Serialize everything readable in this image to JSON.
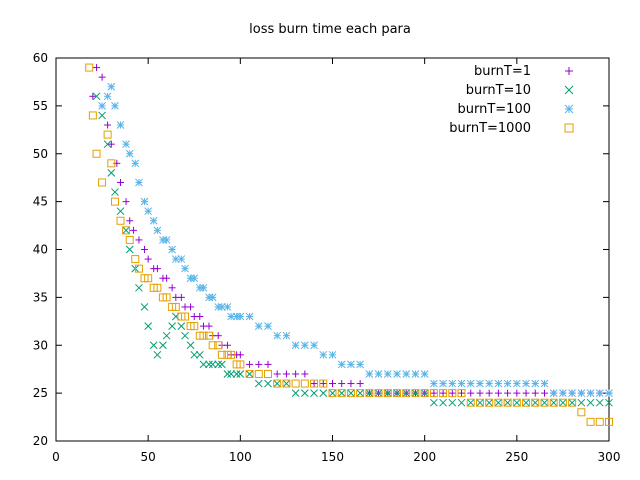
{
  "chart_data": {
    "type": "scatter",
    "title": "loss burn time each para",
    "xlabel": "",
    "ylabel": "",
    "xlim": [
      0,
      300
    ],
    "ylim": [
      20,
      60
    ],
    "xticks": [
      0,
      50,
      100,
      150,
      200,
      250,
      300
    ],
    "yticks": [
      20,
      25,
      30,
      35,
      40,
      45,
      50,
      55,
      60
    ],
    "grid": false,
    "legend_position": "top-right",
    "series": [
      {
        "name": "burnT=1",
        "marker": "plus",
        "color": "#9400d3",
        "x": [
          20,
          22,
          25,
          28,
          30,
          33,
          35,
          38,
          40,
          42,
          45,
          48,
          50,
          53,
          55,
          58,
          60,
          63,
          65,
          68,
          70,
          73,
          75,
          78,
          80,
          83,
          85,
          88,
          90,
          93,
          95,
          98,
          100,
          105,
          110,
          115,
          120,
          125,
          130,
          135,
          140,
          145,
          150,
          155,
          160,
          165,
          170,
          175,
          180,
          185,
          190,
          195,
          200,
          205,
          210,
          215,
          220,
          225,
          230,
          235,
          240,
          245,
          250,
          255,
          260,
          265,
          270,
          275,
          280,
          285,
          290,
          295,
          300
        ],
        "y": [
          56,
          59,
          58,
          53,
          51,
          49,
          47,
          45,
          43,
          42,
          41,
          40,
          39,
          38,
          38,
          37,
          37,
          36,
          35,
          35,
          34,
          34,
          33,
          33,
          32,
          32,
          31,
          31,
          30,
          30,
          29,
          29,
          29,
          28,
          28,
          28,
          27,
          27,
          27,
          27,
          26,
          26,
          26,
          26,
          26,
          26,
          25,
          25,
          25,
          25,
          25,
          25,
          25,
          25,
          25,
          25,
          25,
          25,
          25,
          25,
          25,
          25,
          25,
          25,
          25,
          25,
          25,
          25,
          25,
          25,
          25,
          25,
          25
        ]
      },
      {
        "name": "burnT=10",
        "marker": "cross",
        "color": "#009e73",
        "x": [
          22,
          25,
          28,
          30,
          32,
          35,
          38,
          40,
          43,
          45,
          48,
          50,
          53,
          55,
          58,
          60,
          63,
          65,
          68,
          70,
          73,
          75,
          78,
          80,
          83,
          85,
          88,
          90,
          93,
          95,
          98,
          100,
          105,
          110,
          115,
          120,
          125,
          130,
          135,
          140,
          145,
          150,
          155,
          160,
          165,
          170,
          175,
          180,
          185,
          190,
          195,
          200,
          205,
          210,
          215,
          220,
          225,
          230,
          235,
          240,
          245,
          250,
          255,
          260,
          265,
          270,
          275,
          280,
          285,
          290,
          295,
          300
        ],
        "y": [
          56,
          54,
          51,
          48,
          46,
          44,
          42,
          40,
          38,
          36,
          34,
          32,
          30,
          29,
          30,
          31,
          32,
          33,
          32,
          31,
          30,
          29,
          29,
          28,
          28,
          28,
          28,
          28,
          27,
          27,
          27,
          27,
          27,
          26,
          26,
          26,
          26,
          25,
          25,
          25,
          25,
          25,
          25,
          25,
          25,
          25,
          25,
          25,
          25,
          25,
          25,
          25,
          24,
          24,
          24,
          24,
          24,
          24,
          24,
          24,
          24,
          24,
          24,
          24,
          24,
          24,
          24,
          24,
          24,
          24,
          24,
          24
        ]
      },
      {
        "name": "burnT=100",
        "marker": "star",
        "color": "#56b4e9",
        "x": [
          25,
          28,
          30,
          32,
          35,
          38,
          40,
          43,
          45,
          48,
          50,
          53,
          55,
          58,
          60,
          63,
          65,
          68,
          70,
          73,
          75,
          78,
          80,
          83,
          85,
          88,
          90,
          93,
          95,
          98,
          100,
          105,
          110,
          115,
          120,
          125,
          130,
          135,
          140,
          145,
          150,
          155,
          160,
          165,
          170,
          175,
          180,
          185,
          190,
          195,
          200,
          205,
          210,
          215,
          220,
          225,
          230,
          235,
          240,
          245,
          250,
          255,
          260,
          265,
          270,
          275,
          280,
          285,
          290,
          295,
          300
        ],
        "y": [
          55,
          56,
          57,
          55,
          53,
          51,
          50,
          49,
          47,
          45,
          44,
          43,
          42,
          41,
          41,
          40,
          39,
          39,
          38,
          37,
          37,
          36,
          36,
          35,
          35,
          34,
          34,
          34,
          33,
          33,
          33,
          33,
          32,
          32,
          31,
          31,
          30,
          30,
          30,
          29,
          29,
          28,
          28,
          28,
          27,
          27,
          27,
          27,
          27,
          27,
          27,
          26,
          26,
          26,
          26,
          26,
          26,
          26,
          26,
          26,
          26,
          26,
          26,
          26,
          25,
          25,
          25,
          25,
          25,
          25,
          25
        ]
      },
      {
        "name": "burnT=1000",
        "marker": "square",
        "color": "#e69f00",
        "x": [
          18,
          20,
          22,
          25,
          28,
          30,
          32,
          35,
          38,
          40,
          43,
          45,
          48,
          50,
          53,
          55,
          58,
          60,
          63,
          65,
          68,
          70,
          73,
          75,
          78,
          80,
          83,
          85,
          88,
          90,
          93,
          95,
          98,
          100,
          105,
          110,
          115,
          120,
          125,
          130,
          135,
          140,
          145,
          150,
          155,
          160,
          165,
          170,
          175,
          180,
          185,
          190,
          195,
          200,
          205,
          210,
          215,
          220,
          225,
          230,
          235,
          240,
          245,
          250,
          255,
          260,
          265,
          270,
          275,
          280,
          285,
          290,
          295,
          300
        ],
        "y": [
          59,
          54,
          50,
          47,
          52,
          49,
          45,
          43,
          42,
          41,
          39,
          38,
          37,
          37,
          36,
          36,
          35,
          35,
          34,
          34,
          33,
          33,
          32,
          32,
          31,
          31,
          31,
          30,
          30,
          29,
          29,
          29,
          28,
          28,
          27,
          27,
          27,
          26,
          26,
          26,
          26,
          26,
          26,
          25,
          25,
          25,
          25,
          25,
          25,
          25,
          25,
          25,
          25,
          25,
          25,
          25,
          25,
          25,
          24,
          24,
          24,
          24,
          24,
          24,
          24,
          24,
          24,
          24,
          24,
          24,
          23,
          22,
          22,
          22
        ]
      }
    ]
  }
}
